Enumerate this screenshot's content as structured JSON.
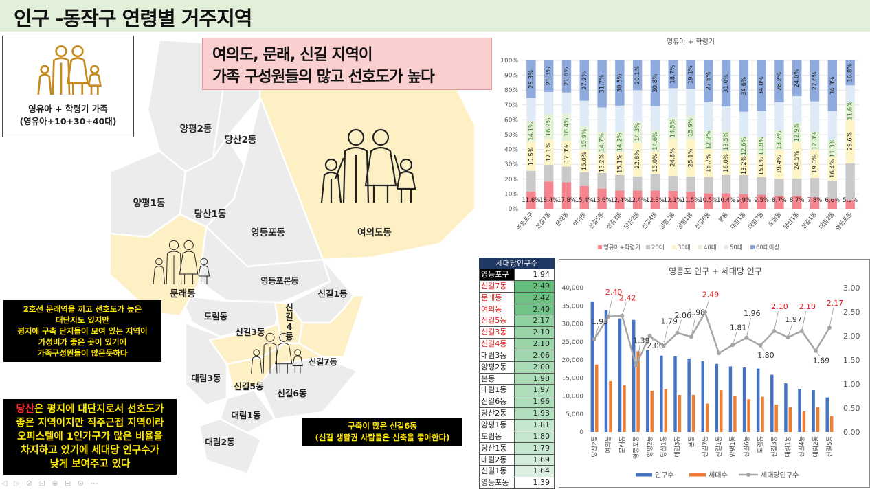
{
  "title": "인구 -동작구 연령별 거주지역",
  "family_box": {
    "caption1": "영유아 + 학령기 가족",
    "caption2": "(영유아+10+30+40대)"
  },
  "headline": {
    "line1": "여의도, 문래, 신길 지역이",
    "line2": "가족 구성원들의 많고 선호도가 높다"
  },
  "map": {
    "districts": [
      "양평2동",
      "당산2동",
      "양평1동",
      "당산1동",
      "영등포동",
      "여의도동",
      "문래동",
      "영등포본동",
      "신길1동",
      "도림동",
      "신길3동",
      "신길4동",
      "신길7동",
      "대림3동",
      "신길5동",
      "신길6동",
      "대림1동",
      "대림2동"
    ],
    "colors": {
      "highlight": "#fdf0c5",
      "normal": "#ececec",
      "border": "#ffffff"
    }
  },
  "notes": {
    "note1": [
      "2호선 문래역을 끼고 선호도가 높은",
      "대단지도 있지만",
      "평지에 구축 단지들이 모여 있는 지역이",
      "가성비가 좋은 곳이 있기에",
      "가족구성원들이 많은듯하다"
    ],
    "note2_red": "당산",
    "note2_first": "은 평지에 대단지로서 선호도가",
    "note2_rest": [
      "좋은 지역이지만 직주근접 지역이라",
      "오피스텔에 1인가구가 많은 비율을",
      "차지하고  있기에 세대당 인구수가",
      "낮게 보여주고 있다"
    ],
    "note3": [
      "구축이 많은 신길6동",
      "(신길 생활권 사람들은 신축을 좋아한다)"
    ]
  },
  "table": {
    "header": "세대당인구수",
    "rows": [
      {
        "name": "영등포구",
        "value": "1.94"
      },
      {
        "name": "신길7동",
        "value": "2.49"
      },
      {
        "name": "문래동",
        "value": "2.42"
      },
      {
        "name": "여의동",
        "value": "2.40"
      },
      {
        "name": "신길5동",
        "value": "2.17"
      },
      {
        "name": "신길3동",
        "value": "2.10"
      },
      {
        "name": "신길4동",
        "value": "2.10"
      },
      {
        "name": "대림3동",
        "value": "2.06"
      },
      {
        "name": "양평2동",
        "value": "2.00"
      },
      {
        "name": "본동",
        "value": "1.98"
      },
      {
        "name": "대림1동",
        "value": "1.97"
      },
      {
        "name": "신길6동",
        "value": "1.96"
      },
      {
        "name": "당산2동",
        "value": "1.93"
      },
      {
        "name": "양평1동",
        "value": "1.81"
      },
      {
        "name": "도림동",
        "value": "1.80"
      },
      {
        "name": "당산1동",
        "value": "1.79"
      },
      {
        "name": "대림2동",
        "value": "1.69"
      },
      {
        "name": "신길1동",
        "value": "1.64"
      },
      {
        "name": "영등포동",
        "value": "1.39"
      }
    ],
    "red_rows": [
      1,
      2,
      3,
      4,
      5,
      6
    ],
    "bar_color": "#63be7b"
  },
  "chart_data": [
    {
      "type": "bar",
      "stacked": "percent",
      "title": "영유아 + 학령기",
      "categories": [
        "영등포구",
        "신길7동",
        "문래동",
        "여의동",
        "신길5동",
        "신길3동",
        "당산2동",
        "신길4동",
        "양평2동",
        "양평1동",
        "신길6동",
        "본동",
        "대림1동",
        "대림3동",
        "도림동",
        "당산1동",
        "신길1동",
        "대림2동",
        "영등포동"
      ],
      "series": [
        {
          "name": "영유아+학령기",
          "color": "#f4858e",
          "values": [
            11.6,
            18.4,
            17.8,
            15.4,
            13.6,
            12.4,
            12.4,
            12.3,
            12.1,
            11.5,
            10.5,
            10.4,
            9.9,
            9.5,
            8.7,
            8.7,
            7.8,
            6.6,
            5.9
          ]
        },
        {
          "name": "20대",
          "color": "#c9c9c9",
          "values": [
            14.0,
            11.2,
            10.7,
            9.2,
            10.5,
            10.4,
            9.5,
            11.1,
            10.1,
            10.3,
            11.0,
            12.4,
            12.8,
            11.8,
            11.5,
            11.7,
            13.0,
            12.5,
            24.8
          ]
        },
        {
          "name": "30대",
          "color": "#fdf5c8",
          "values": [
            19.5,
            17.1,
            17.3,
            15.0,
            13.2,
            15.1,
            22.8,
            15.0,
            24.8,
            25.1,
            18.7,
            16.0,
            13.2,
            15.0,
            19.4,
            24.5,
            19.0,
            16.4,
            29.6
          ]
        },
        {
          "name": "40대",
          "color": "#e4f0d8",
          "values": [
            14.1,
            16.9,
            18.4,
            15.9,
            14.7,
            14.2,
            14.3,
            14.6,
            14.5,
            15.9,
            12.2,
            13.5,
            12.6,
            11.9,
            13.2,
            12.9,
            12.3,
            11.3,
            11.6
          ]
        },
        {
          "name": "50대",
          "color": "#deebf7",
          "values": [
            15.5,
            15.1,
            14.2,
            17.3,
            16.3,
            17.4,
            21.0,
            16.2,
            19.8,
            18.1,
            19.8,
            16.7,
            16.9,
            17.8,
            19.0,
            18.0,
            20.3,
            19.6,
            11.3
          ]
        },
        {
          "name": "60대이상",
          "color": "#8faadc",
          "values": [
            25.3,
            21.3,
            21.6,
            27.2,
            31.7,
            30.5,
            20.1,
            30.8,
            18.7,
            19.1,
            27.8,
            31.0,
            34.6,
            34.0,
            28.2,
            24.0,
            27.6,
            34.3,
            16.8
          ]
        }
      ],
      "labeled_series": [
        "영유아+학령기",
        "30대",
        "40대",
        "60대이상"
      ],
      "ylim": [
        0,
        100
      ],
      "yticks": [
        "0%",
        "10%",
        "20%",
        "30%",
        "40%",
        "50%",
        "60%",
        "70%",
        "80%",
        "90%",
        "100%"
      ],
      "legend": "bottom"
    },
    {
      "type": "bar",
      "title": "영등포 인구 + 세대당 인구",
      "categories": [
        "당산2동",
        "여의동",
        "문래동",
        "영등포동",
        "양평2동",
        "당산1동",
        "대림3동",
        "본동",
        "신길7동",
        "신길1동",
        "양평1동",
        "신길6동",
        "도림동",
        "신길3동",
        "대림1동",
        "신길4동",
        "대림2동",
        "신길5동"
      ],
      "series": [
        {
          "name": "인구수",
          "color": "#4472c4",
          "axis": "left",
          "values": [
            36200,
            33800,
            31500,
            31100,
            22700,
            21200,
            21000,
            20400,
            19600,
            18900,
            18200,
            17900,
            17600,
            15900,
            13500,
            12000,
            11600,
            9600
          ]
        },
        {
          "name": "세대수",
          "color": "#ed7d31",
          "axis": "left",
          "values": [
            18700,
            14100,
            13000,
            22400,
            11400,
            11900,
            10300,
            10300,
            7900,
            11600,
            10100,
            9100,
            9800,
            7600,
            6900,
            5700,
            6900,
            4400
          ]
        },
        {
          "name": "세대당인구수",
          "color": "#a5a5a5",
          "axis": "right",
          "type": "line",
          "values": [
            1.93,
            2.4,
            2.42,
            1.39,
            2.0,
            1.79,
            2.06,
            1.98,
            2.49,
            1.64,
            1.81,
            1.96,
            1.8,
            2.1,
            1.97,
            2.1,
            1.69,
            2.17
          ]
        }
      ],
      "point_labels": [
        "1.93",
        "2.40",
        "2.42",
        "1.39",
        "2.00",
        "1.79",
        "2.06",
        "1.98",
        "2.49",
        "",
        "1.81",
        "1.96",
        "1.80",
        "2.10",
        "1.97",
        "2.10",
        "1.69",
        "2.17"
      ],
      "red_labels": [
        1,
        2,
        8,
        13,
        15,
        17
      ],
      "ylim": [
        0,
        40000
      ],
      "y2lim": [
        0,
        3
      ],
      "yticks": [
        "0",
        "5,000",
        "10,000",
        "15,000",
        "20,000",
        "25,000",
        "30,000",
        "35,000",
        "40,000"
      ],
      "y2ticks": [
        "0.00",
        "0.50",
        "1.00",
        "1.50",
        "2.00",
        "2.50",
        "3.00"
      ],
      "legend": "bottom"
    }
  ]
}
